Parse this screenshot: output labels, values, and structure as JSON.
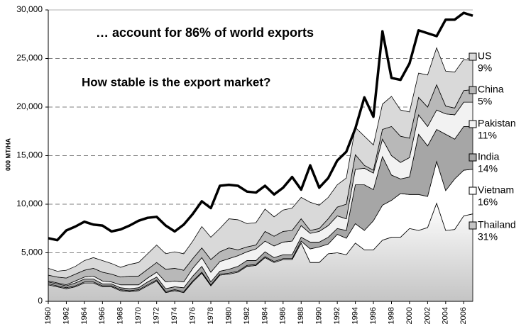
{
  "chart_data": {
    "type": "stacked_area",
    "annotations": [
      "… account for 86% of world exports",
      "How stable is the export market?"
    ],
    "y_label": "000 MT/HA",
    "x": [
      1960,
      1961,
      1962,
      1963,
      1964,
      1965,
      1966,
      1967,
      1968,
      1969,
      1970,
      1971,
      1972,
      1973,
      1974,
      1975,
      1976,
      1977,
      1978,
      1979,
      1980,
      1981,
      1982,
      1983,
      1984,
      1985,
      1986,
      1987,
      1988,
      1989,
      1990,
      1991,
      1992,
      1993,
      1994,
      1995,
      1996,
      1997,
      1998,
      1999,
      2000,
      2001,
      2002,
      2003,
      2004,
      2005,
      2006,
      2007
    ],
    "xlim": [
      1960,
      2007
    ],
    "xticks": [
      1960,
      1962,
      1964,
      1966,
      1968,
      1970,
      1972,
      1974,
      1976,
      1978,
      1980,
      1982,
      1984,
      1986,
      1988,
      1990,
      1992,
      1994,
      1996,
      1998,
      2000,
      2002,
      2004,
      2006
    ],
    "ylim": [
      0,
      30000
    ],
    "yticks": [
      0,
      {
        "value": 5000,
        "label": "5,000"
      },
      {
        "value": 10000,
        "label": "10,000"
      },
      {
        "value": 15000,
        "label": "15,000"
      },
      {
        "value": 20000,
        "label": "20,000"
      },
      {
        "value": 25000,
        "label": "25,000"
      },
      {
        "value": 30000,
        "label": "30,000"
      }
    ],
    "grid": true,
    "series": [
      {
        "name": "Thailand",
        "share": "31%",
        "color": "#c4c4c4",
        "values": [
          1700,
          1500,
          1300,
          1500,
          1900,
          1900,
          1500,
          1500,
          1100,
          1000,
          1100,
          1600,
          2100,
          900,
          1100,
          900,
          2000,
          2900,
          1600,
          2700,
          2800,
          3000,
          3600,
          3700,
          4500,
          4000,
          4300,
          4300,
          6000,
          4000,
          4000,
          4900,
          5000,
          4800,
          6000,
          5300,
          5300,
          6300,
          6600,
          6600,
          7500,
          7300,
          7600,
          10100,
          7300,
          7400,
          8800,
          9000
        ]
      },
      {
        "name": "Vietnam",
        "share": "16%",
        "color": "#ffffff",
        "values": [
          100,
          100,
          100,
          100,
          100,
          100,
          100,
          100,
          100,
          100,
          100,
          100,
          100,
          100,
          100,
          100,
          100,
          100,
          100,
          100,
          100,
          100,
          100,
          100,
          100,
          100,
          100,
          100,
          200,
          1400,
          1600,
          1000,
          1900,
          1700,
          2000,
          2000,
          3000,
          3600,
          3800,
          4500,
          3500,
          3700,
          3200,
          4300,
          4100,
          5200,
          4700,
          4600
        ]
      },
      {
        "name": "India",
        "share": "14%",
        "color": "#a6a6a6",
        "values": [
          200,
          200,
          200,
          300,
          300,
          300,
          200,
          200,
          200,
          200,
          200,
          300,
          300,
          300,
          300,
          400,
          500,
          600,
          300,
          300,
          400,
          500,
          500,
          400,
          500,
          400,
          400,
          400,
          400,
          700,
          500,
          700,
          600,
          800,
          4000,
          4700,
          3200,
          5000,
          2600,
          1500,
          1800,
          6200,
          5200,
          3300,
          5800,
          4100,
          4500,
          4400
        ]
      },
      {
        "name": "Pakistan",
        "share": "11%",
        "color": "#f2f2f2",
        "values": [
          100,
          100,
          100,
          200,
          200,
          300,
          300,
          200,
          300,
          400,
          300,
          400,
          500,
          700,
          600,
          600,
          800,
          900,
          1000,
          1000,
          1100,
          1100,
          900,
          1200,
          1100,
          1200,
          1300,
          1400,
          1200,
          900,
          1100,
          1200,
          1300,
          1200,
          1600,
          1700,
          1700,
          1800,
          2000,
          1700,
          2000,
          2000,
          2000,
          2000,
          2100,
          2500,
          2500,
          2500
        ]
      },
      {
        "name": "China",
        "share": "5%",
        "color": "#b8b8b8",
        "values": [
          600,
          600,
          700,
          700,
          700,
          800,
          900,
          800,
          800,
          900,
          900,
          900,
          1000,
          1300,
          1300,
          1200,
          1000,
          1000,
          1300,
          1000,
          1100,
          600,
          500,
          400,
          1000,
          1000,
          1100,
          1100,
          700,
          300,
          300,
          700,
          900,
          1500,
          1500,
          300,
          300,
          1000,
          3000,
          2700,
          2000,
          1800,
          2000,
          2600,
          800,
          700,
          1200,
          1300
        ]
      },
      {
        "name": "US",
        "share": "9%",
        "color": "#d9d9d9",
        "values": [
          700,
          600,
          800,
          800,
          1000,
          1100,
          1200,
          1100,
          1000,
          1200,
          1400,
          1600,
          1800,
          1600,
          1700,
          1700,
          1800,
          2200,
          2300,
          2400,
          3000,
          3100,
          2400,
          2300,
          2300,
          2000,
          2200,
          2300,
          2200,
          2900,
          2400,
          2200,
          2300,
          2700,
          2800,
          3000,
          2600,
          2600,
          3100,
          2700,
          2700,
          2500,
          3300,
          3800,
          3600,
          3700,
          3200,
          3000
        ]
      }
    ],
    "total_line": {
      "color": "#000000",
      "values": [
        6500,
        6300,
        7300,
        7700,
        8200,
        7900,
        7800,
        7200,
        7400,
        7800,
        8300,
        8600,
        8700,
        7800,
        7200,
        7900,
        9000,
        10300,
        9600,
        11900,
        12000,
        11900,
        11300,
        11200,
        11900,
        11000,
        11700,
        12800,
        11500,
        14000,
        11700,
        12700,
        14500,
        15400,
        17800,
        21000,
        19000,
        27800,
        23000,
        22800,
        24500,
        27900,
        27600,
        27300,
        29000,
        29000,
        29700,
        29400
      ]
    }
  }
}
